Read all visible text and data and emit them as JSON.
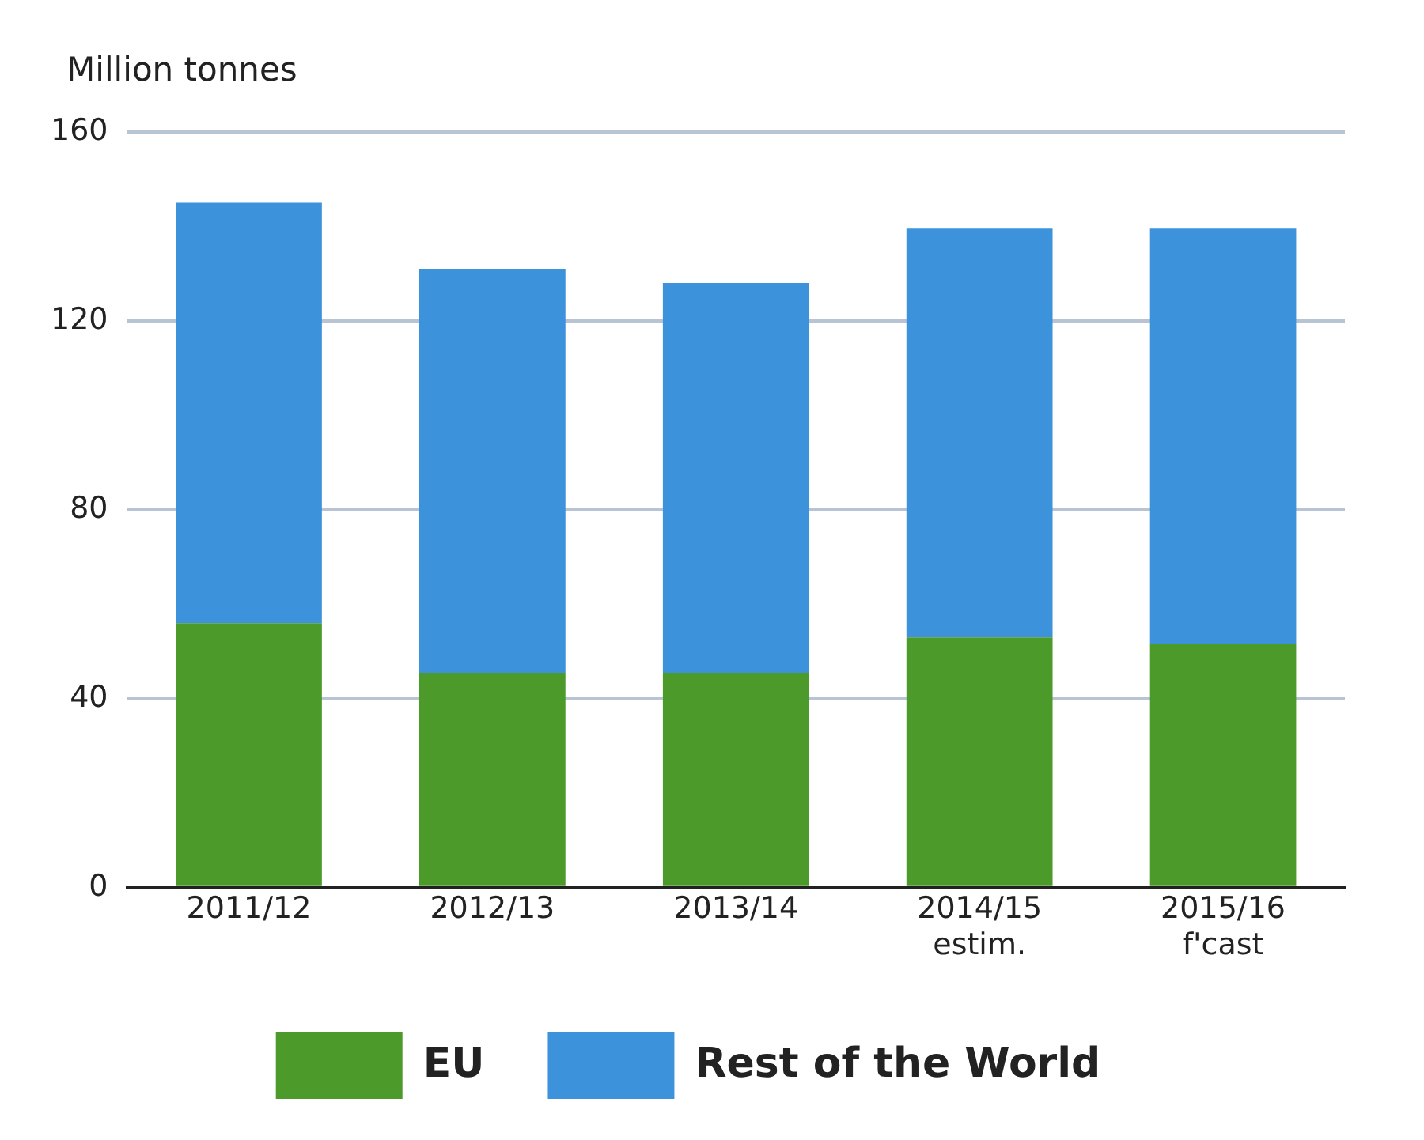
{
  "chart_data": {
    "type": "bar",
    "ylabel": "Million tonnes",
    "categories": [
      "2011/12",
      "2012/13",
      "2013/14",
      "2014/15\nestim.",
      "2015/16\nf'cast"
    ],
    "stacked": true,
    "series": [
      {
        "name": "EU",
        "color": "#4c9a2a",
        "values": [
          56,
          45.5,
          45.5,
          53,
          51.5
        ]
      },
      {
        "name": "Rest of the World",
        "color": "#3d92dc",
        "values": [
          89,
          85.5,
          82.5,
          86.5,
          88
        ]
      }
    ],
    "ylim": [
      0,
      160
    ],
    "yticks": [
      0,
      40,
      80,
      120,
      160
    ],
    "grid": "y",
    "legend": "bottom"
  }
}
